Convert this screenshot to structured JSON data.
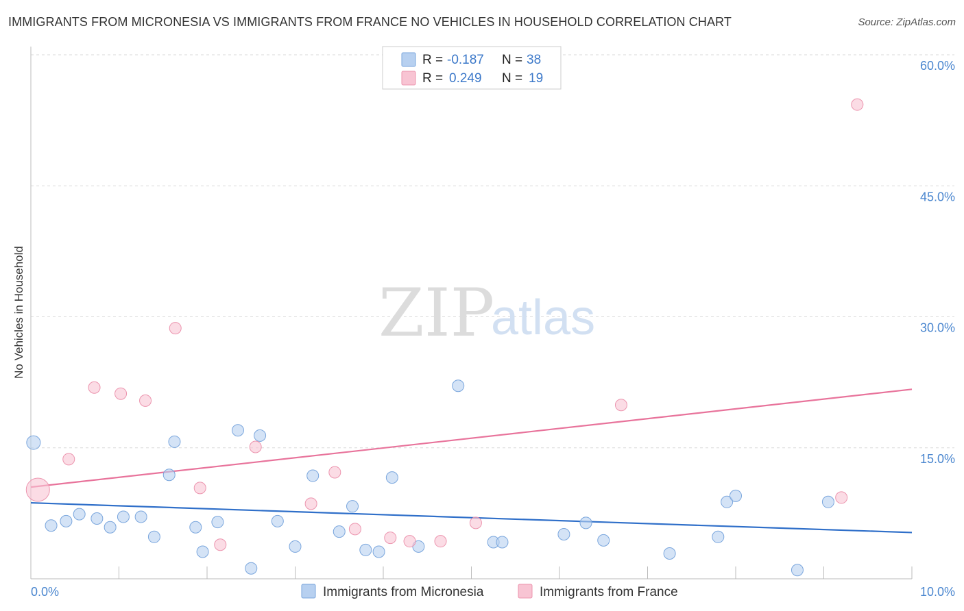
{
  "title": "IMMIGRANTS FROM MICRONESIA VS IMMIGRANTS FROM FRANCE NO VEHICLES IN HOUSEHOLD CORRELATION CHART",
  "source": "Source: ZipAtlas.com",
  "watermark": {
    "zip": "ZIP",
    "atlas": "atlas"
  },
  "colors": {
    "micronesia_fill": "#b7d0f0",
    "micronesia_stroke": "#7aa6dd",
    "micronesia_line": "#2f6fc9",
    "france_fill": "#f8c4d3",
    "france_stroke": "#ec94ae",
    "france_line": "#e8739b",
    "tick_text": "#4a86cf"
  },
  "legend": {
    "rows": [
      {
        "r_label": "R =",
        "r_value": "-0.187",
        "n_label": "N =",
        "n_value": "38"
      },
      {
        "r_label": "R =",
        "r_value": "0.249",
        "n_label": "N =",
        "n_value": "19"
      }
    ]
  },
  "chart_data": {
    "type": "scatter",
    "title": "IMMIGRANTS FROM MICRONESIA VS IMMIGRANTS FROM FRANCE NO VEHICLES IN HOUSEHOLD CORRELATION CHART",
    "xlabel": "",
    "ylabel": "No Vehicles in Household",
    "xlim": [
      0,
      10
    ],
    "ylim": [
      0,
      60
    ],
    "x_tick_labels": [
      "0.0%",
      "10.0%"
    ],
    "y_ticks": [
      15,
      30,
      45,
      60
    ],
    "y_tick_labels": [
      "15.0%",
      "30.0%",
      "45.0%",
      "60.0%"
    ],
    "grid": true,
    "legend_position": "top-center",
    "series": [
      {
        "name": "Immigrants from Micronesia",
        "r": -0.187,
        "n": 38,
        "trend": {
          "x": [
            0,
            10
          ],
          "y": [
            8.7,
            5.3
          ]
        },
        "points": [
          {
            "x": 0.03,
            "y": 15.6,
            "large": true
          },
          {
            "x": 0.23,
            "y": 6.1
          },
          {
            "x": 0.4,
            "y": 6.6
          },
          {
            "x": 0.55,
            "y": 7.4
          },
          {
            "x": 0.75,
            "y": 6.9
          },
          {
            "x": 0.9,
            "y": 5.9
          },
          {
            "x": 1.05,
            "y": 7.1
          },
          {
            "x": 1.25,
            "y": 7.1
          },
          {
            "x": 1.4,
            "y": 4.8
          },
          {
            "x": 1.57,
            "y": 11.9
          },
          {
            "x": 1.63,
            "y": 15.7
          },
          {
            "x": 1.87,
            "y": 5.9
          },
          {
            "x": 1.95,
            "y": 3.1
          },
          {
            "x": 2.12,
            "y": 6.5
          },
          {
            "x": 2.35,
            "y": 17.0
          },
          {
            "x": 2.5,
            "y": 1.2
          },
          {
            "x": 2.6,
            "y": 16.4
          },
          {
            "x": 2.8,
            "y": 6.6
          },
          {
            "x": 3.0,
            "y": 3.7
          },
          {
            "x": 3.2,
            "y": 11.8
          },
          {
            "x": 3.5,
            "y": 5.4
          },
          {
            "x": 3.65,
            "y": 8.3
          },
          {
            "x": 3.8,
            "y": 3.3
          },
          {
            "x": 3.95,
            "y": 3.1
          },
          {
            "x": 4.1,
            "y": 11.6
          },
          {
            "x": 4.4,
            "y": 3.7
          },
          {
            "x": 4.85,
            "y": 22.1
          },
          {
            "x": 5.25,
            "y": 4.2
          },
          {
            "x": 5.35,
            "y": 4.2
          },
          {
            "x": 6.05,
            "y": 5.1
          },
          {
            "x": 6.3,
            "y": 6.4
          },
          {
            "x": 6.5,
            "y": 4.4
          },
          {
            "x": 7.25,
            "y": 2.9
          },
          {
            "x": 7.8,
            "y": 4.8
          },
          {
            "x": 7.9,
            "y": 8.8
          },
          {
            "x": 8.0,
            "y": 9.5
          },
          {
            "x": 8.7,
            "y": 1.0
          },
          {
            "x": 9.05,
            "y": 8.8
          }
        ]
      },
      {
        "name": "Immigrants from France",
        "r": 0.249,
        "n": 19,
        "trend": {
          "x": [
            0,
            10
          ],
          "y": [
            10.5,
            21.7
          ]
        },
        "points": [
          {
            "x": 0.08,
            "y": 10.2,
            "large": true
          },
          {
            "x": 0.43,
            "y": 13.7
          },
          {
            "x": 0.72,
            "y": 21.9
          },
          {
            "x": 1.02,
            "y": 21.2
          },
          {
            "x": 1.3,
            "y": 20.4
          },
          {
            "x": 1.64,
            "y": 28.7
          },
          {
            "x": 1.92,
            "y": 10.4
          },
          {
            "x": 2.15,
            "y": 3.9
          },
          {
            "x": 2.55,
            "y": 15.1
          },
          {
            "x": 3.18,
            "y": 8.6
          },
          {
            "x": 3.45,
            "y": 12.2
          },
          {
            "x": 3.68,
            "y": 5.7
          },
          {
            "x": 4.08,
            "y": 4.7
          },
          {
            "x": 4.3,
            "y": 4.3
          },
          {
            "x": 4.65,
            "y": 4.3
          },
          {
            "x": 5.05,
            "y": 6.4
          },
          {
            "x": 6.7,
            "y": 19.9
          },
          {
            "x": 9.2,
            "y": 9.3
          },
          {
            "x": 9.38,
            "y": 54.3
          }
        ]
      }
    ]
  }
}
